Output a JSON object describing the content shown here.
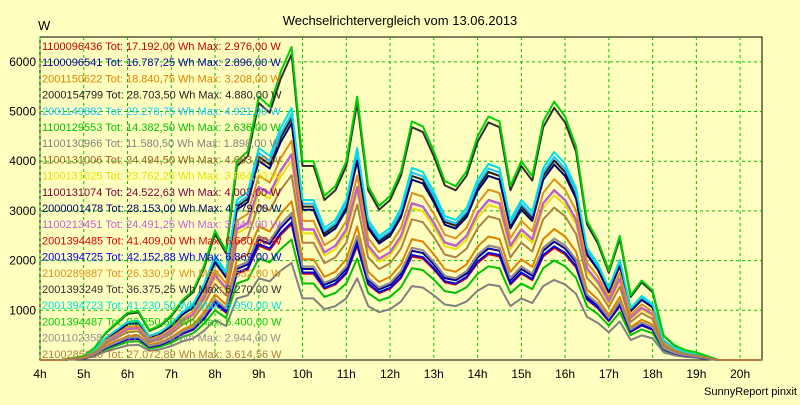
{
  "chart_data": {
    "type": "line",
    "title": "Wechselrichtervergleich vom 13.06.2013",
    "ylabel": "W",
    "footer": "SunnyReport pinxit",
    "ylim": [
      0,
      6500
    ],
    "yticks": [
      1000,
      2000,
      3000,
      4000,
      5000,
      6000
    ],
    "xticks": [
      "4h",
      "5h",
      "6h",
      "7h",
      "8h",
      "9h",
      "10h",
      "11h",
      "12h",
      "13h",
      "14h",
      "15h",
      "16h",
      "17h",
      "18h",
      "19h",
      "20h"
    ],
    "xrange_hours": [
      4,
      20.5
    ],
    "grid": true,
    "legend_placement": "top-left inside plot",
    "series": [
      {
        "name": "1100096436 Tot: 17.192,00 Wh Max: 2.976,00 W",
        "color": "#c00000",
        "peak": 2976,
        "scale": 0.47
      },
      {
        "name": "1100096541 Tot: 16.787,25 Wh Max: 2.896,00 W",
        "color": "#0000a0",
        "peak": 2896,
        "scale": 0.458
      },
      {
        "name": "2001150622 Tot: 18.840,75 Wh Max: 3.208,00 W",
        "color": "#e08000",
        "peak": 3208,
        "scale": 0.507
      },
      {
        "name": "2000154799 Tot: 28.703,50 Wh Max: 4.880,00 W",
        "color": "#202020",
        "peak": 4880,
        "scale": 0.772
      },
      {
        "name": "2001149882 Tot: 29.278,75 Wh Max: 4.921,00 W",
        "color": "#20c0ff",
        "peak": 4921,
        "scale": 0.786
      },
      {
        "name": "1100129553 Tot: 14.382,50 Wh Max: 2.636,00 W",
        "color": "#00c000",
        "peak": 2636,
        "scale": 0.385
      },
      {
        "name": "1100130966 Tot: 11.580,50 Wh Max: 1.898,00 W",
        "color": "#808080",
        "peak": 1898,
        "scale": 0.31
      },
      {
        "name": "1100131006 Tot: 24.494,50 Wh Max: 4.663,00 W",
        "color": "#a06020",
        "peak": 4663,
        "scale": 0.656
      },
      {
        "name": "1100131025 Tot: 23.762,25 Wh Max: 3.864,00 W",
        "color": "#e8e000",
        "peak": 3864,
        "scale": 0.637
      },
      {
        "name": "1100131074 Tot: 24.522,63 Wh Max: 4.003,00 W",
        "color": "#800040",
        "peak": 4003,
        "scale": 0.657
      },
      {
        "name": "2000001478 Tot: 28.153,00 Wh Max: 4.779,00 W",
        "color": "#000070",
        "peak": 4779,
        "scale": 0.756
      },
      {
        "name": "1100213451 Tot: 24.491,25 Wh Max: 3.942,00 W",
        "color": "#c060e0",
        "peak": 3942,
        "scale": 0.656
      },
      {
        "name": "2001394485 Tot: 41.409,00 Wh Max: 6.680,00 W",
        "color": "#e00000",
        "peak": 6680,
        "scale": 0.434
      },
      {
        "name": "2001394725 Tot: 42.152,88 Wh Max: 6.869,00 W",
        "color": "#0000e0",
        "peak": 6869,
        "scale": 0.44
      },
      {
        "name": "2100289887 Tot: 26.330,97 Wh Max: 4.632,00 W",
        "color": "#e09020",
        "peak": 4632,
        "scale": 0.7
      },
      {
        "name": "2001393249 Tot: 36.375,25 Wh Max: 6.270,00 W",
        "color": "#303030",
        "peak": 6270,
        "scale": 0.976
      },
      {
        "name": "2001394723 Tot: 41.230,50 Wh Max: 6.950,00 W",
        "color": "#00e0e0",
        "peak": 6950,
        "scale": 0.805
      },
      {
        "name": "2001394487 Tot: 36.250,50 Wh Max: 6.400,00 W",
        "color": "#00d000",
        "peak": 6400,
        "scale": 1.0
      },
      {
        "name": "2001102358 Tot: 17.342,50 Wh Max: 2.944,00 W",
        "color": "#909090",
        "peak": 2944,
        "scale": 0.47
      },
      {
        "name": "2100285620 Tot: 27.072,89 Wh Max: 3.614,56 W",
        "color": "#b08040",
        "peak": 3614,
        "scale": 0.59
      }
    ],
    "base_profile": {
      "x": [
        4.0,
        4.5,
        5.0,
        5.25,
        5.5,
        5.75,
        6.0,
        6.25,
        6.5,
        6.75,
        7.0,
        7.25,
        7.5,
        7.75,
        8.0,
        8.25,
        8.5,
        8.75,
        9.0,
        9.25,
        9.5,
        9.75,
        10.0,
        10.25,
        10.5,
        10.75,
        11.0,
        11.25,
        11.5,
        11.75,
        12.0,
        12.25,
        12.5,
        12.75,
        13.0,
        13.25,
        13.5,
        13.75,
        14.0,
        14.25,
        14.5,
        14.75,
        15.0,
        15.25,
        15.5,
        15.75,
        16.0,
        16.25,
        16.5,
        16.75,
        17.0,
        17.25,
        17.5,
        17.75,
        18.0,
        18.25,
        18.5,
        18.75,
        19.0,
        19.5,
        20.0,
        20.5
      ],
      "y": [
        0,
        0,
        80,
        250,
        550,
        750,
        950,
        980,
        600,
        700,
        900,
        1200,
        1400,
        1900,
        2600,
        2200,
        4000,
        4200,
        5300,
        5100,
        5800,
        6300,
        4000,
        4000,
        3300,
        3500,
        4000,
        5300,
        3500,
        3100,
        3300,
        3800,
        4800,
        4700,
        4200,
        3600,
        3500,
        3800,
        4500,
        4900,
        4800,
        3500,
        4000,
        3700,
        4800,
        5200,
        4900,
        4300,
        2800,
        2400,
        1800,
        2500,
        1300,
        1600,
        1400,
        500,
        300,
        200,
        150,
        0,
        0,
        0
      ]
    }
  }
}
